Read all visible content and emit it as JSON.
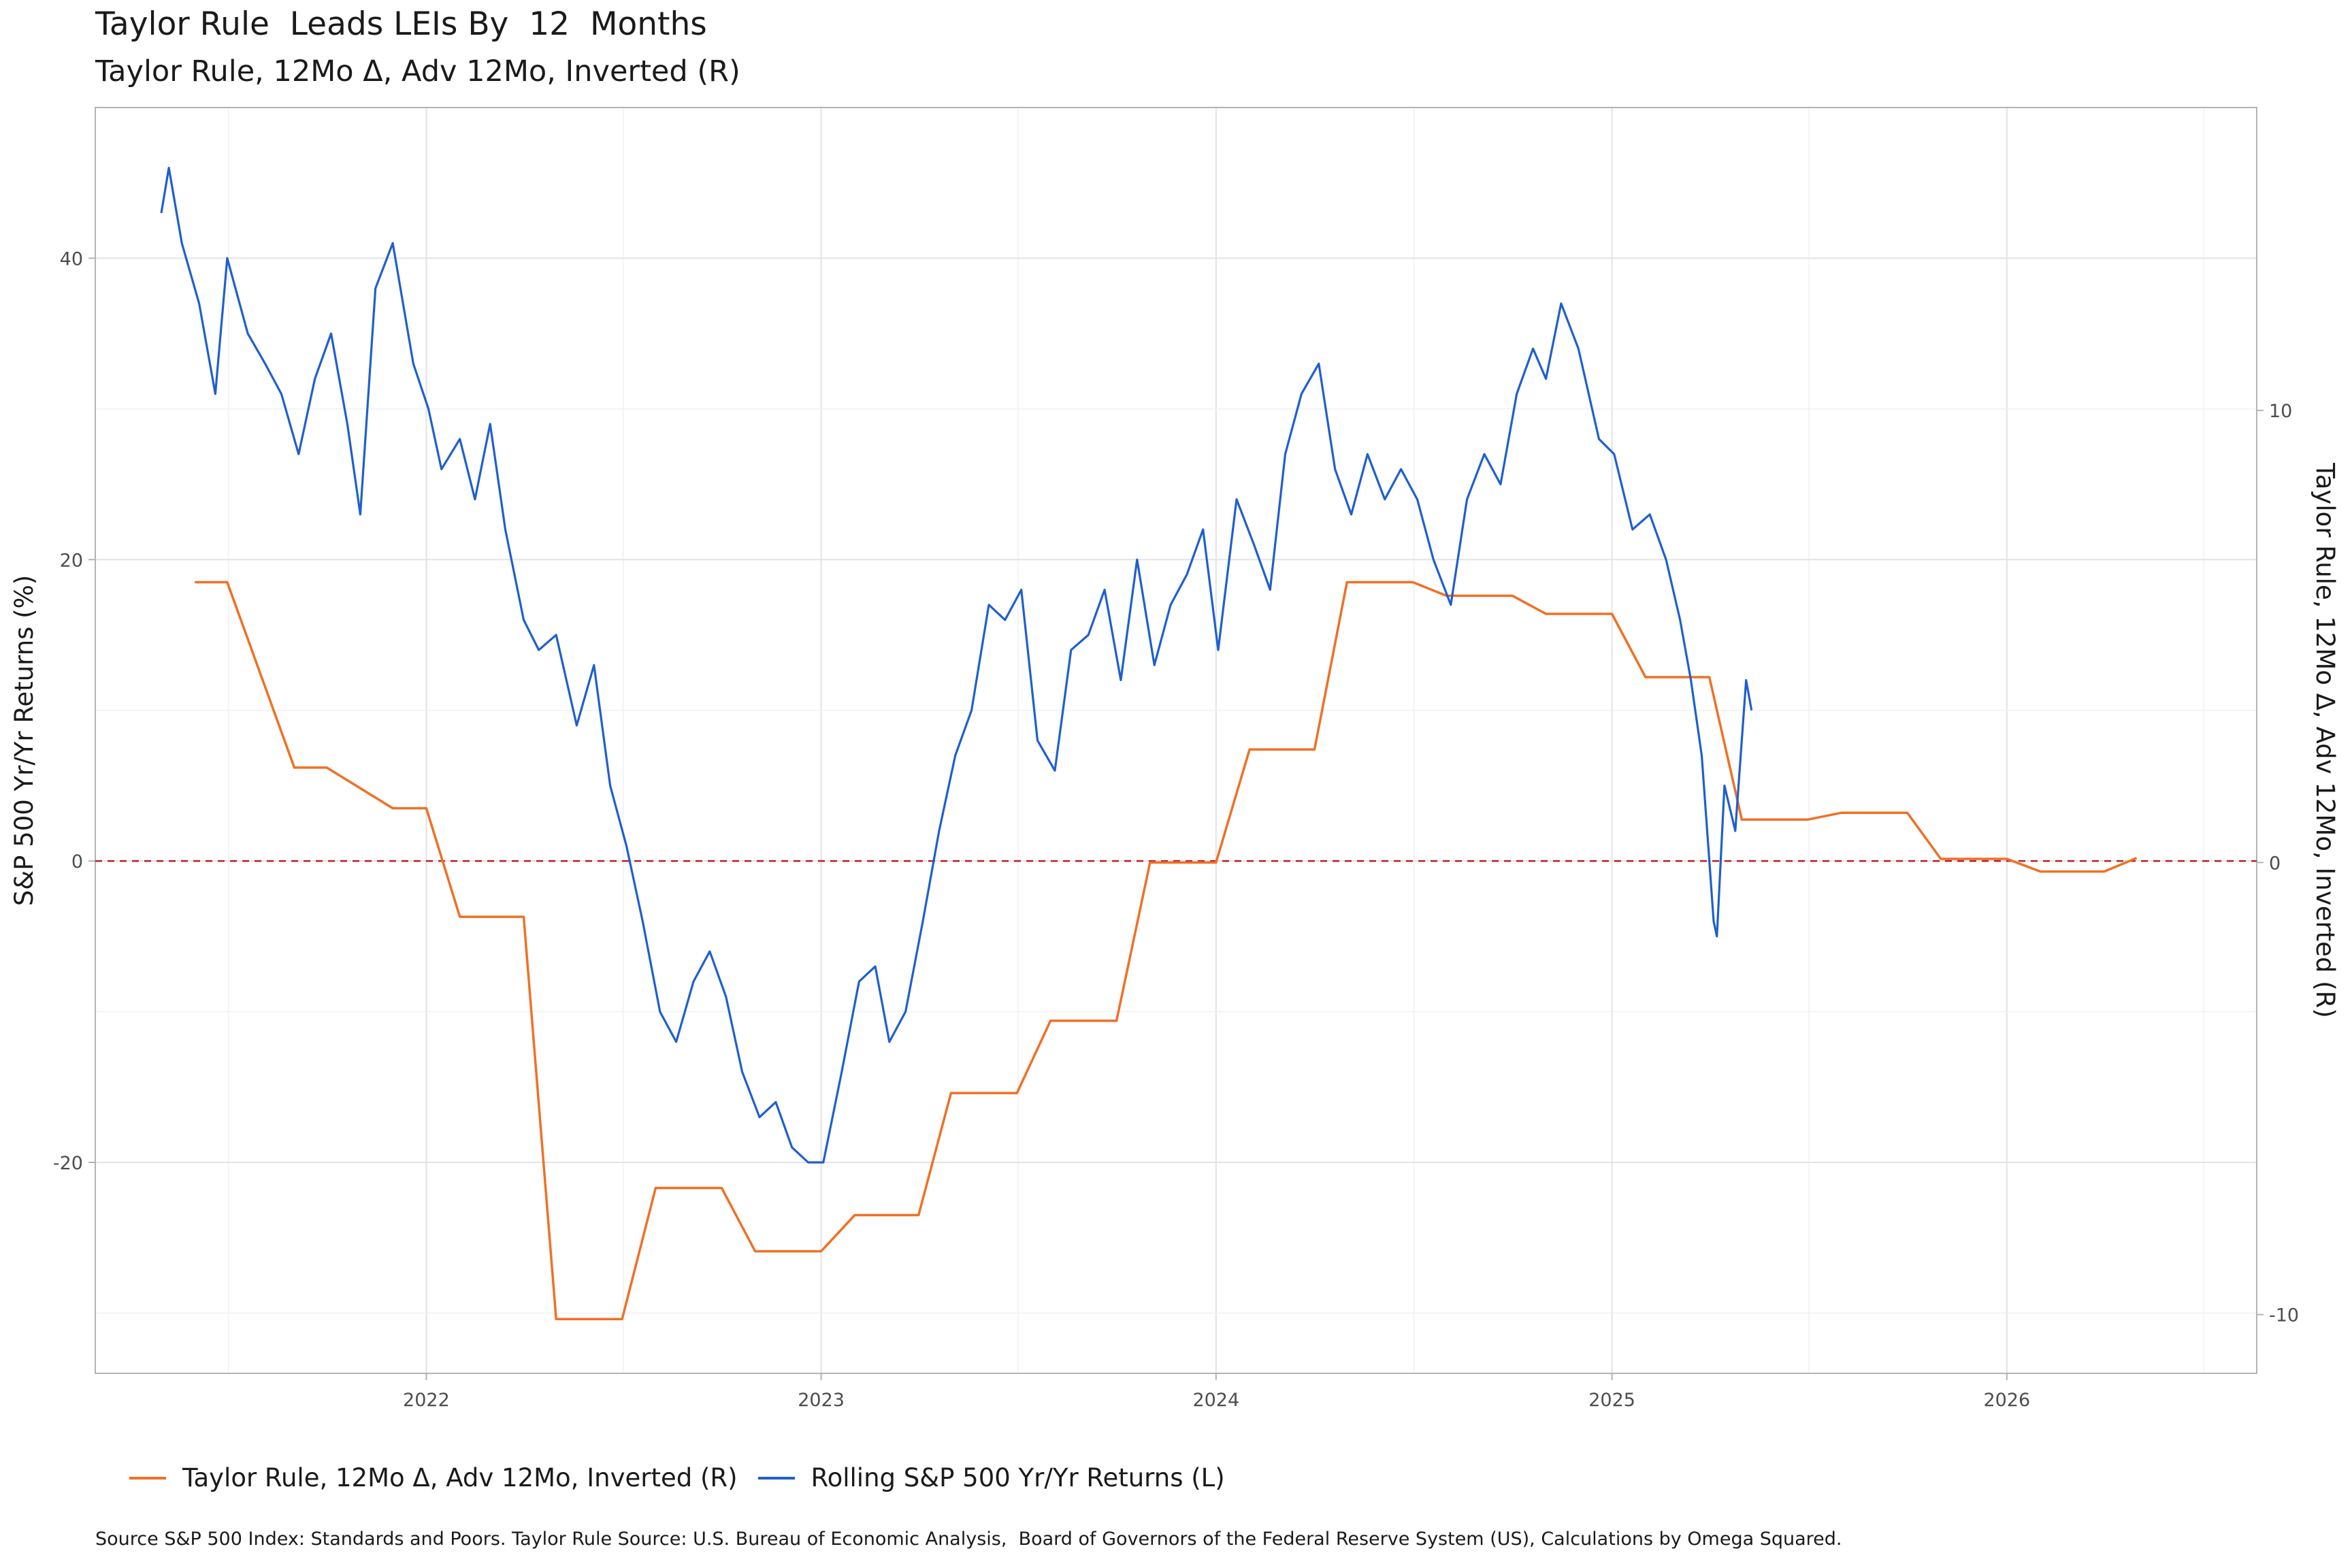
{
  "chart_data": {
    "type": "line",
    "title": "Taylor Rule  Leads LEIs By  12  Months",
    "subtitle": "Taylor Rule, 12Mo Δ, Adv 12Mo, Inverted (R)",
    "ylabel_left": "S&P 500 Yr/Yr Returns (%)",
    "ylabel_right": "Taylor Rule, 12Mo Δ, Adv 12Mo, Inverted (R)",
    "xlim": [
      "2021-03-01",
      "2026-08-20"
    ],
    "ylim_left": [
      -34,
      50
    ],
    "ylim_right": [
      -11.3,
      16.7
    ],
    "x_ticks": [
      "2022",
      "2023",
      "2024",
      "2025",
      "2026"
    ],
    "y_ticks_left": [
      -20,
      0,
      20,
      40
    ],
    "y_ticks_right": [
      -10,
      0,
      10
    ],
    "grid": true,
    "reference_line": {
      "axis": "left",
      "value": 0,
      "style": "dashed",
      "color": "#b22222"
    },
    "legend_position": "bottom",
    "series": [
      {
        "name": "Taylor Rule, 12Mo Δ, Adv 12Mo, Inverted (R)",
        "axis": "right",
        "color": "#f07025",
        "x": [
          "2021-06-01",
          "2021-07-01",
          "2021-09-01",
          "2021-10-01",
          "2021-12-01",
          "2022-01-01",
          "2022-02-01",
          "2022-04-01",
          "2022-05-01",
          "2022-07-01",
          "2022-08-01",
          "2022-10-01",
          "2022-11-01",
          "2023-01-01",
          "2023-02-01",
          "2023-04-01",
          "2023-05-01",
          "2023-07-01",
          "2023-08-01",
          "2023-10-01",
          "2023-11-01",
          "2024-01-01",
          "2024-02-01",
          "2024-04-01",
          "2024-05-01",
          "2024-07-01",
          "2024-08-01",
          "2024-10-01",
          "2024-11-01",
          "2025-01-01",
          "2025-02-01",
          "2025-04-01",
          "2025-05-01",
          "2025-07-01",
          "2025-08-01",
          "2025-10-01",
          "2025-11-01",
          "2026-01-01",
          "2026-02-01",
          "2026-04-01",
          "2026-05-01"
        ],
        "values": [
          6.2,
          6.2,
          2.1,
          2.1,
          1.2,
          1.2,
          -1.2,
          -1.2,
          -10.1,
          -10.1,
          -7.2,
          -7.2,
          -8.6,
          -8.6,
          -7.8,
          -7.8,
          -5.1,
          -5.1,
          -3.5,
          -3.5,
          0.0,
          0.0,
          2.5,
          2.5,
          6.2,
          6.2,
          5.9,
          5.9,
          5.5,
          5.5,
          4.1,
          4.1,
          0.95,
          0.95,
          1.1,
          1.1,
          0.08,
          0.08,
          -0.2,
          -0.2,
          0.1
        ]
      },
      {
        "name": "Rolling S&P 500 Yr/Yr Returns (L)",
        "axis": "left",
        "color": "#1f5fcf",
        "x": [
          "2021-05-01",
          "2021-05-08",
          "2021-05-20",
          "2021-06-05",
          "2021-06-20",
          "2021-07-01",
          "2021-07-20",
          "2021-08-05",
          "2021-08-20",
          "2021-09-05",
          "2021-09-20",
          "2021-10-05",
          "2021-10-20",
          "2021-11-01",
          "2021-11-15",
          "2021-12-01",
          "2021-12-20",
          "2022-01-03",
          "2022-01-15",
          "2022-02-01",
          "2022-02-15",
          "2022-03-01",
          "2022-03-15",
          "2022-04-01",
          "2022-04-15",
          "2022-05-01",
          "2022-05-20",
          "2022-06-05",
          "2022-06-20",
          "2022-07-05",
          "2022-07-20",
          "2022-08-05",
          "2022-08-20",
          "2022-09-05",
          "2022-09-20",
          "2022-10-05",
          "2022-10-20",
          "2022-11-05",
          "2022-11-20",
          "2022-12-05",
          "2022-12-20",
          "2023-01-03",
          "2023-01-20",
          "2023-02-05",
          "2023-02-20",
          "2023-03-05",
          "2023-03-20",
          "2023-04-05",
          "2023-04-20",
          "2023-05-05",
          "2023-05-20",
          "2023-06-05",
          "2023-06-20",
          "2023-07-05",
          "2023-07-20",
          "2023-08-05",
          "2023-08-20",
          "2023-09-05",
          "2023-09-20",
          "2023-10-05",
          "2023-10-20",
          "2023-11-05",
          "2023-11-20",
          "2023-12-05",
          "2023-12-20",
          "2024-01-03",
          "2024-01-20",
          "2024-02-05",
          "2024-02-20",
          "2024-03-05",
          "2024-03-20",
          "2024-04-05",
          "2024-04-20",
          "2024-05-05",
          "2024-05-20",
          "2024-06-05",
          "2024-06-20",
          "2024-07-05",
          "2024-07-20",
          "2024-08-05",
          "2024-08-20",
          "2024-09-05",
          "2024-09-20",
          "2024-10-05",
          "2024-10-20",
          "2024-11-01",
          "2024-11-15",
          "2024-12-01",
          "2024-12-20",
          "2025-01-03",
          "2025-01-20",
          "2025-02-05",
          "2025-02-20",
          "2025-03-05",
          "2025-03-15",
          "2025-03-25",
          "2025-04-01",
          "2025-04-05",
          "2025-04-08",
          "2025-04-15",
          "2025-04-25",
          "2025-05-05",
          "2025-05-10"
        ],
        "values": [
          43,
          46,
          41,
          37,
          31,
          40,
          35,
          33,
          31,
          27,
          32,
          35,
          29,
          23,
          38,
          41,
          33,
          30,
          26,
          28,
          24,
          29,
          22,
          16,
          14,
          15,
          9,
          13,
          5,
          1,
          -4,
          -10,
          -12,
          -8,
          -6,
          -9,
          -14,
          -17,
          -16,
          -19,
          -20,
          -20,
          -14,
          -8,
          -7,
          -12,
          -10,
          -4,
          2,
          7,
          10,
          17,
          16,
          18,
          8,
          6,
          14,
          15,
          18,
          12,
          20,
          13,
          17,
          19,
          22,
          14,
          24,
          21,
          18,
          27,
          31,
          33,
          26,
          23,
          27,
          24,
          26,
          24,
          20,
          17,
          24,
          27,
          25,
          31,
          34,
          32,
          37,
          34,
          28,
          27,
          22,
          23,
          20,
          16,
          12,
          7,
          0,
          -4,
          -5,
          5,
          2,
          12,
          10
        ]
      }
    ]
  },
  "legend": {
    "taylor_label": "Taylor Rule, 12Mo Δ, Adv 12Mo, Inverted (R)",
    "sp_label": "Rolling S&P 500 Yr/Yr Returns (L)"
  },
  "source": "Source S&P 500 Index: Standards and Poors. Taylor Rule Source: U.S. Bureau of Economic Analysis,  Board of Governors of the Federal Reserve System (US), Calculations by Omega Squared."
}
